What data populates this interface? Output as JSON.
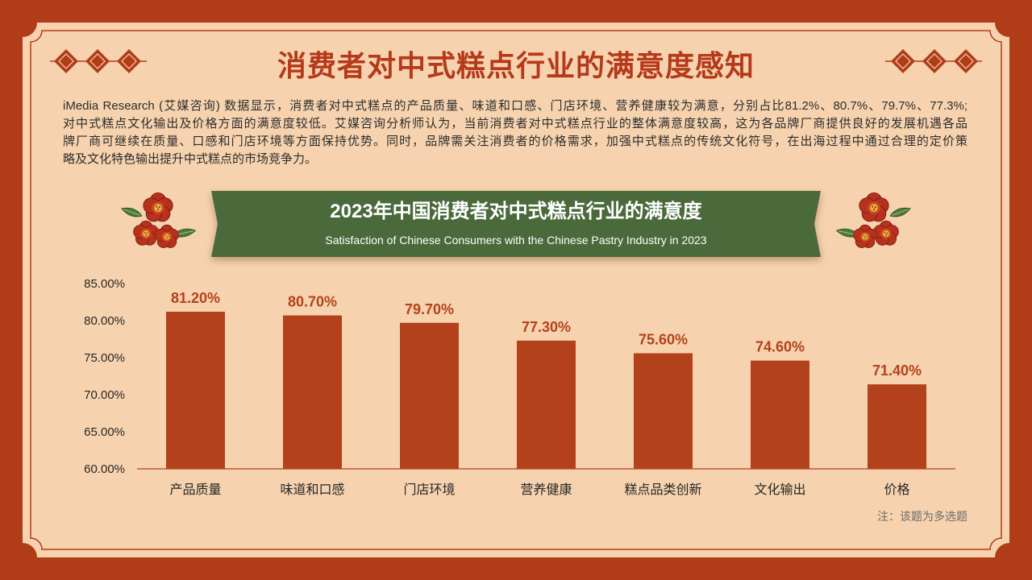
{
  "slide": {
    "title": "消费者对中式糕点行业的满意度感知",
    "description_lines": [
      "iMedia Research (艾媒咨询) 数据显示，消费者对中式糕点的产品质量、味道和口感、门店环境、营养健康较为满意，分别占比81.2%、80.7%、79.7%、77.3%;",
      "对中式糕点文化输出及价格方面的满意度较低。艾媒咨询分析师认为，当前消费者对中式糕点行业的整体满意度较高，这为各品牌厂商提供良好的发展机遇各品",
      "牌厂商可继续在质量、口感和门店环境等方面保持优势。同时，品牌需关注消费者的价格需求，加强中式糕点的传统文化符号，在出海过程中通过合理的定价策",
      "略及文化特色输出提升中式糕点的市场竞争力。"
    ],
    "note": "注：该题为多选题"
  },
  "colors": {
    "frame": "#b13c18",
    "panel": "#f6d3ae",
    "title": "#b5391a",
    "bar": "#b3421c",
    "value_label": "#b3421c",
    "axis": "#b3421c",
    "banner": "#4b6a3b",
    "banner_text": "#ffffff",
    "body_text": "#2d2d2d"
  },
  "chart_data": {
    "type": "bar",
    "title": "2023年中国消费者对中式糕点行业的满意度",
    "subtitle": "Satisfaction of Chinese Consumers with the Chinese Pastry Industry in 2023",
    "categories": [
      "产品质量",
      "味道和口感",
      "门店环境",
      "营养健康",
      "糕点品类创新",
      "文化输出",
      "价格"
    ],
    "values": [
      81.2,
      80.7,
      79.7,
      77.3,
      75.6,
      74.6,
      71.4
    ],
    "value_labels": [
      "81.20%",
      "80.70%",
      "79.70%",
      "77.30%",
      "75.60%",
      "74.60%",
      "71.40%"
    ],
    "yticks": [
      85,
      80,
      75,
      70,
      65,
      60
    ],
    "ytick_labels": [
      "85.00%",
      "80.00%",
      "75.00%",
      "70.00%",
      "65.00%",
      "60.00%"
    ],
    "ylim": [
      60,
      85
    ],
    "grid": false,
    "legend": false
  }
}
